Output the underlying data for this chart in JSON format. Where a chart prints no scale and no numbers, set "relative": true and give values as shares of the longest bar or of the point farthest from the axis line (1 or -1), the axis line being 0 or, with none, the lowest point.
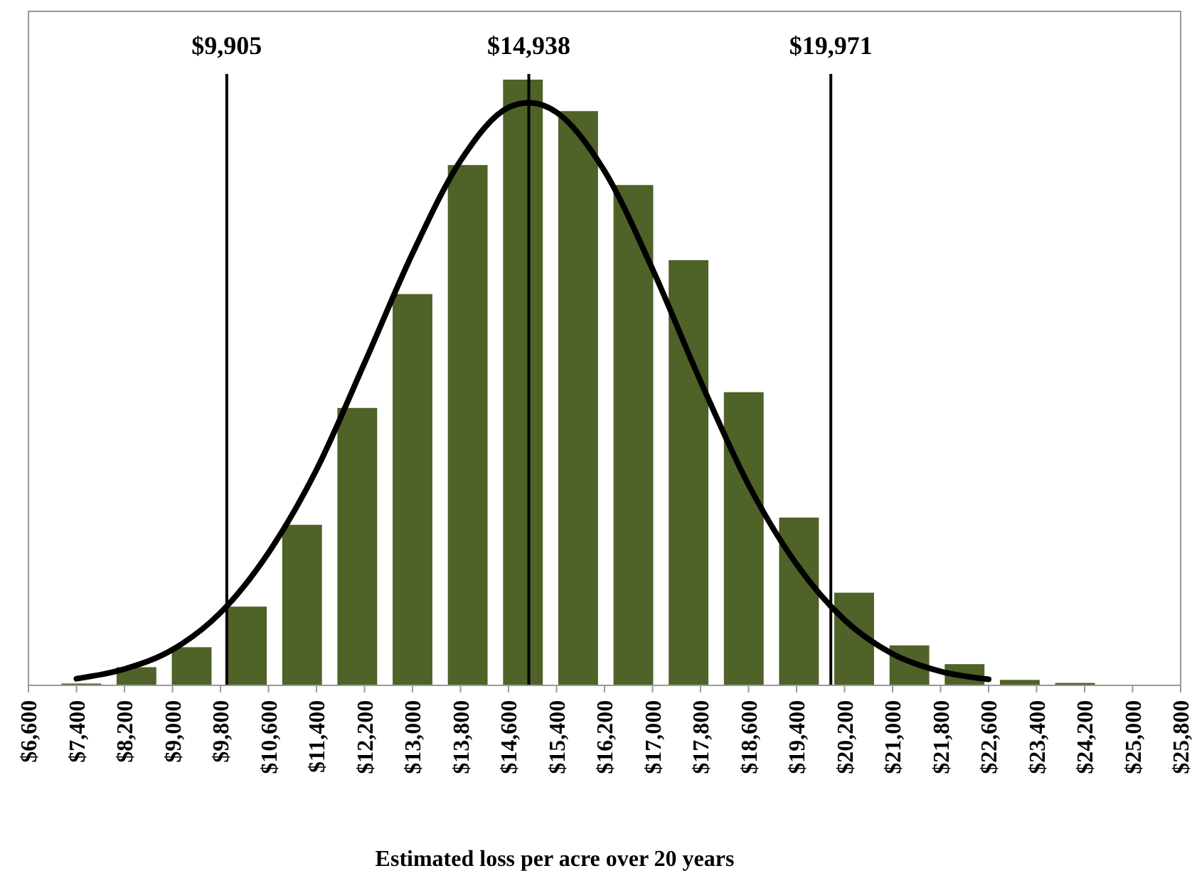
{
  "chart_data": {
    "type": "histogram",
    "relative": true,
    "xlabel": "Estimated loss per acre over 20 years",
    "bins": [
      7020,
      7940,
      8860,
      9780,
      10700,
      11620,
      12540,
      13460,
      14380,
      15300,
      16220,
      17140,
      18060,
      18980,
      19900,
      20820,
      21740,
      22660,
      23580,
      24500,
      25420
    ],
    "values": [
      0.003,
      0.03,
      0.063,
      0.13,
      0.265,
      0.458,
      0.646,
      0.859,
      1,
      0.948,
      0.826,
      0.702,
      0.484,
      0.277,
      0.153,
      0.066,
      0.035,
      0.009,
      0.004,
      0
    ],
    "color": "#4f6228",
    "series": [
      {
        "type": "line",
        "color": "#000000",
        "x": [
          7400,
          8200,
          9000,
          9800,
          10600,
          11400,
          12200,
          13000,
          13800,
          14600,
          14938,
          15400,
          16200,
          17000,
          17800,
          18600,
          19400,
          20200,
          21000,
          21800,
          22600
        ],
        "values": [
          0.011,
          0.027,
          0.059,
          0.12,
          0.219,
          0.356,
          0.532,
          0.713,
          0.866,
          0.954,
          0.962,
          0.946,
          0.849,
          0.687,
          0.502,
          0.331,
          0.2,
          0.108,
          0.052,
          0.023,
          0.01
        ]
      }
    ],
    "xlim": [
      6600,
      25800
    ],
    "xticks": [
      {
        "value": 6600,
        "label": "$6,600"
      },
      {
        "value": 7400,
        "label": "$7,400"
      },
      {
        "value": 8200,
        "label": "$8,200"
      },
      {
        "value": 9000,
        "label": "$9,000"
      },
      {
        "value": 9800,
        "label": "$9,800"
      },
      {
        "value": 10600,
        "label": "$10,600"
      },
      {
        "value": 11400,
        "label": "$11,400"
      },
      {
        "value": 12200,
        "label": "$12,200"
      },
      {
        "value": 13000,
        "label": "$13,000"
      },
      {
        "value": 13800,
        "label": "$13,800"
      },
      {
        "value": 14600,
        "label": "$14,600"
      },
      {
        "value": 15400,
        "label": "$15,400"
      },
      {
        "value": 16200,
        "label": "$16,200"
      },
      {
        "value": 17000,
        "label": "$17,000"
      },
      {
        "value": 17800,
        "label": "$17,800"
      },
      {
        "value": 18600,
        "label": "$18,600"
      },
      {
        "value": 19400,
        "label": "$19,400"
      },
      {
        "value": 20200,
        "label": "$20,200"
      },
      {
        "value": 21000,
        "label": "$21,000"
      },
      {
        "value": 21800,
        "label": "$21,800"
      },
      {
        "value": 22600,
        "label": "$22,600"
      },
      {
        "value": 23400,
        "label": "$23,400"
      },
      {
        "value": 24200,
        "label": "$24,200"
      },
      {
        "value": 25000,
        "label": "$25,000"
      },
      {
        "value": 25800,
        "label": "$25,800"
      }
    ],
    "ref_lines": [
      {
        "axis": "x",
        "value": 9905,
        "label": "$9,905",
        "color": "#000000"
      },
      {
        "axis": "x",
        "value": 14938,
        "label": "$14,938",
        "color": "#000000"
      },
      {
        "axis": "x",
        "value": 19971,
        "label": "$19,971",
        "color": "#000000"
      }
    ]
  }
}
